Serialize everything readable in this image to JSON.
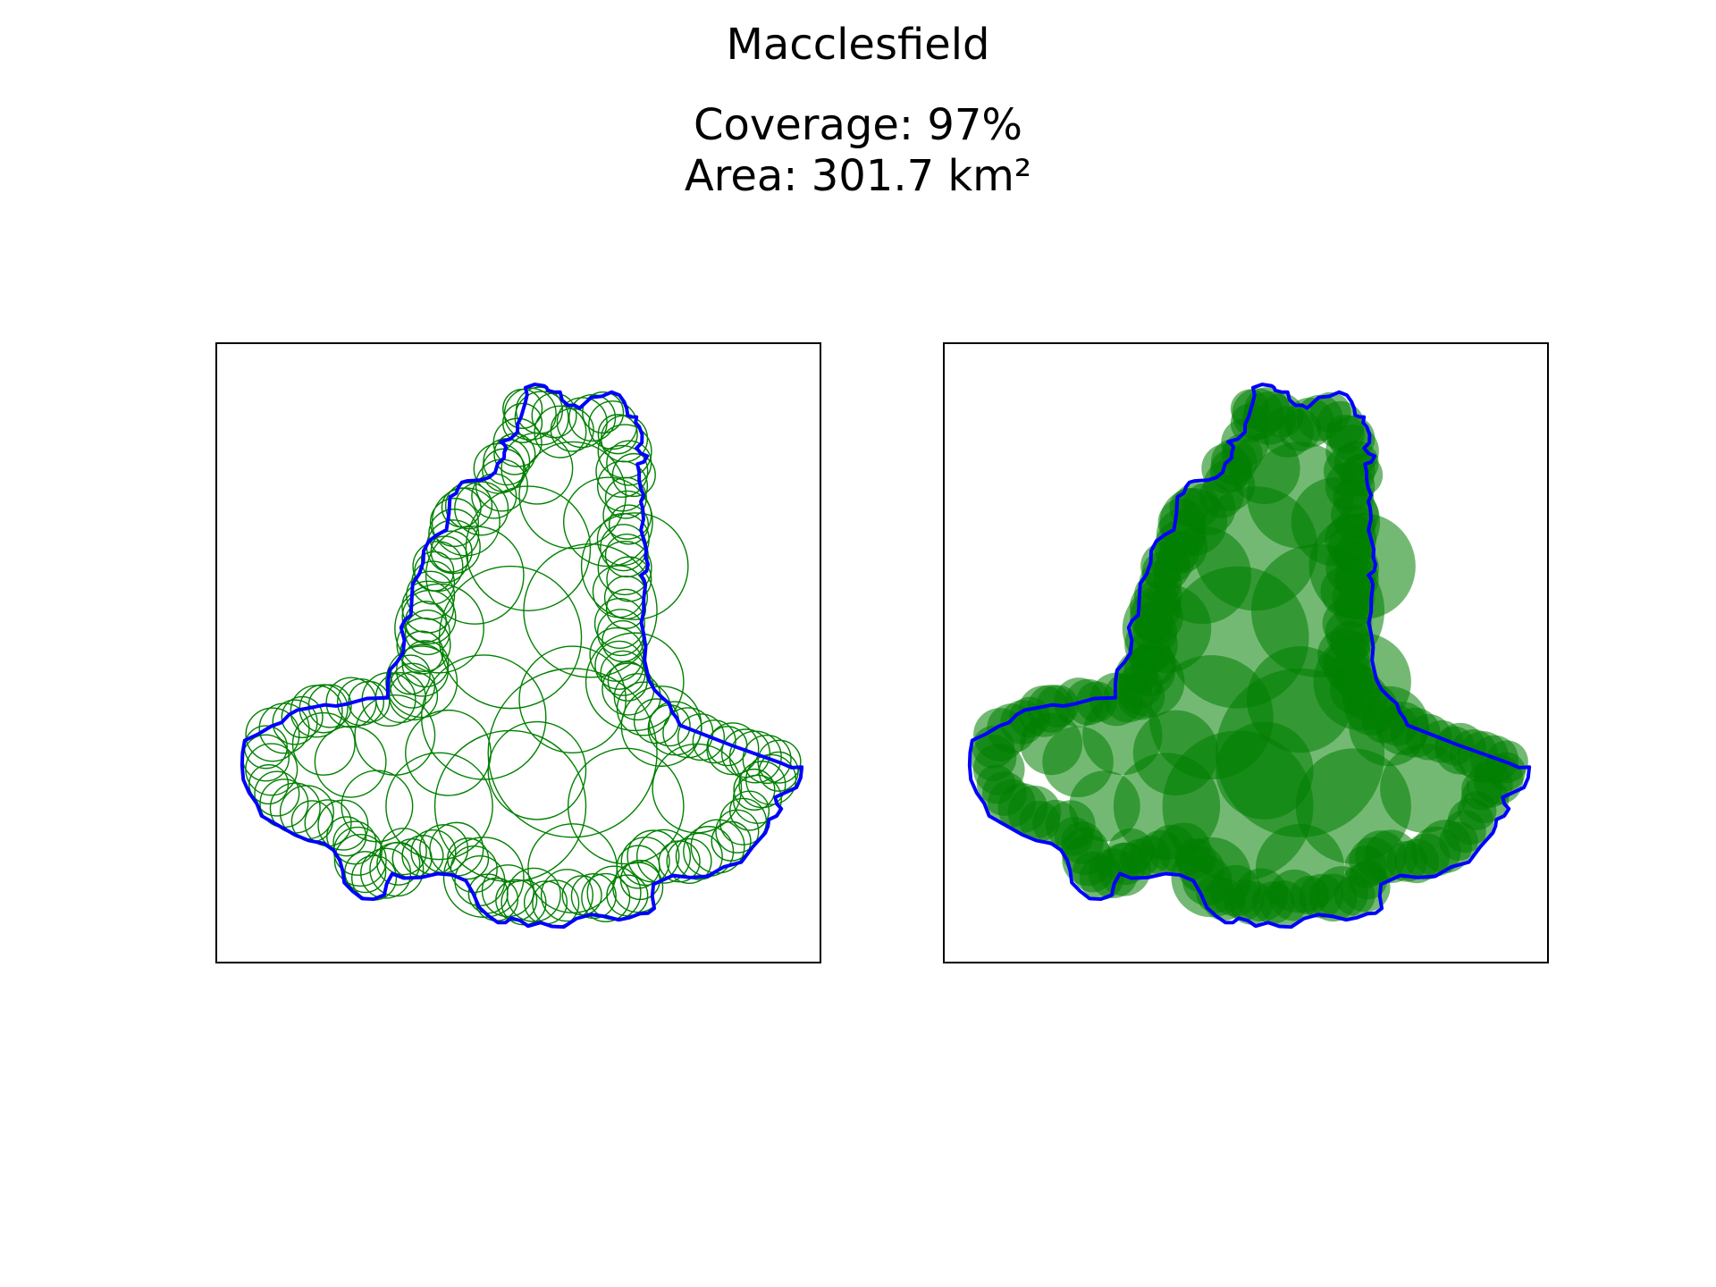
{
  "figure": {
    "title": "Macclesfield",
    "coverage_line": "Coverage: 97%",
    "area_line": "Area: 301.7 km²"
  },
  "panels": [
    {
      "name": "panel-left",
      "style": "outline"
    },
    {
      "name": "panel-right",
      "style": "filled"
    }
  ],
  "colors": {
    "boundary": "#0000ff",
    "circles": "#008000",
    "frame": "#000000",
    "background": "#ffffff"
  }
}
